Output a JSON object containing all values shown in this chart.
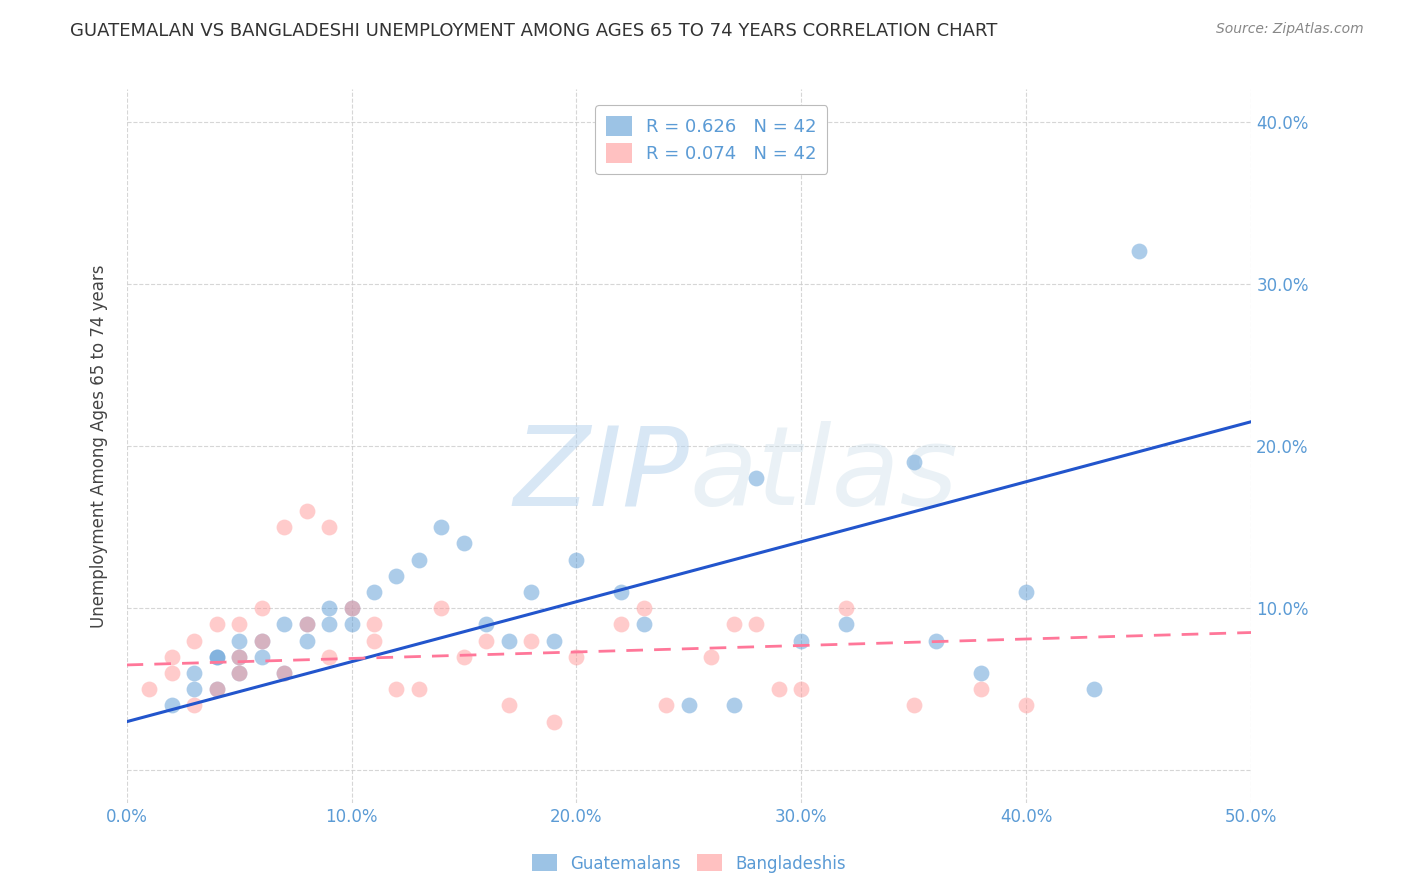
{
  "title": "GUATEMALAN VS BANGLADESHI UNEMPLOYMENT AMONG AGES 65 TO 74 YEARS CORRELATION CHART",
  "source": "Source: ZipAtlas.com",
  "ylabel": "Unemployment Among Ages 65 to 74 years",
  "xlim": [
    0.0,
    0.5
  ],
  "ylim": [
    -0.02,
    0.42
  ],
  "x_ticks": [
    0.0,
    0.1,
    0.2,
    0.3,
    0.4,
    0.5
  ],
  "x_tick_labels": [
    "0.0%",
    "10.0%",
    "20.0%",
    "30.0%",
    "40.0%",
    "50.0%"
  ],
  "y_ticks": [
    0.0,
    0.1,
    0.2,
    0.3,
    0.4
  ],
  "y_ticks_right": [
    0.1,
    0.2,
    0.3,
    0.4
  ],
  "y_tick_labels_right": [
    "10.0%",
    "20.0%",
    "30.0%",
    "40.0%"
  ],
  "guatemalan_color": "#5B9BD5",
  "bangladeshi_color": "#FF9999",
  "guatemalan_label": "Guatemalans",
  "bangladeshi_label": "Bangladeshis",
  "legend_R_guatemalan": "R = 0.626",
  "legend_N_guatemalan": "N = 42",
  "legend_R_bangladeshi": "R = 0.074",
  "legend_N_bangladeshi": "N = 42",
  "watermark_zip": "ZIP",
  "watermark_atlas": "atlas",
  "background_color": "#ffffff",
  "grid_color": "#cccccc",
  "tick_color": "#5B9BD5",
  "title_color": "#333333",
  "source_color": "#888888",
  "ylabel_color": "#444444",
  "guatemalan_x": [
    0.02,
    0.03,
    0.03,
    0.04,
    0.04,
    0.04,
    0.05,
    0.05,
    0.05,
    0.06,
    0.06,
    0.07,
    0.07,
    0.08,
    0.08,
    0.09,
    0.09,
    0.1,
    0.1,
    0.11,
    0.12,
    0.13,
    0.14,
    0.15,
    0.16,
    0.17,
    0.18,
    0.19,
    0.2,
    0.22,
    0.23,
    0.25,
    0.27,
    0.28,
    0.3,
    0.32,
    0.35,
    0.36,
    0.38,
    0.4,
    0.43,
    0.45
  ],
  "guatemalan_y": [
    0.04,
    0.05,
    0.06,
    0.07,
    0.05,
    0.07,
    0.08,
    0.06,
    0.07,
    0.07,
    0.08,
    0.09,
    0.06,
    0.09,
    0.08,
    0.09,
    0.1,
    0.1,
    0.09,
    0.11,
    0.12,
    0.13,
    0.15,
    0.14,
    0.09,
    0.08,
    0.11,
    0.08,
    0.13,
    0.11,
    0.09,
    0.04,
    0.04,
    0.18,
    0.08,
    0.09,
    0.19,
    0.08,
    0.06,
    0.11,
    0.05,
    0.32
  ],
  "bangladeshi_x": [
    0.01,
    0.02,
    0.02,
    0.03,
    0.03,
    0.04,
    0.04,
    0.05,
    0.05,
    0.05,
    0.06,
    0.06,
    0.07,
    0.07,
    0.08,
    0.08,
    0.09,
    0.09,
    0.1,
    0.11,
    0.11,
    0.12,
    0.13,
    0.14,
    0.15,
    0.16,
    0.17,
    0.18,
    0.19,
    0.2,
    0.22,
    0.23,
    0.24,
    0.26,
    0.27,
    0.28,
    0.29,
    0.3,
    0.32,
    0.35,
    0.38,
    0.4
  ],
  "bangladeshi_y": [
    0.05,
    0.06,
    0.07,
    0.04,
    0.08,
    0.09,
    0.05,
    0.07,
    0.06,
    0.09,
    0.08,
    0.1,
    0.06,
    0.15,
    0.16,
    0.09,
    0.15,
    0.07,
    0.1,
    0.08,
    0.09,
    0.05,
    0.05,
    0.1,
    0.07,
    0.08,
    0.04,
    0.08,
    0.03,
    0.07,
    0.09,
    0.1,
    0.04,
    0.07,
    0.09,
    0.09,
    0.05,
    0.05,
    0.1,
    0.04,
    0.05,
    0.04
  ],
  "blue_line_x0": 0.0,
  "blue_line_y0": 0.03,
  "blue_line_x1": 0.5,
  "blue_line_y1": 0.215,
  "pink_line_x0": 0.0,
  "pink_line_y0": 0.065,
  "pink_line_x1": 0.5,
  "pink_line_y1": 0.085
}
